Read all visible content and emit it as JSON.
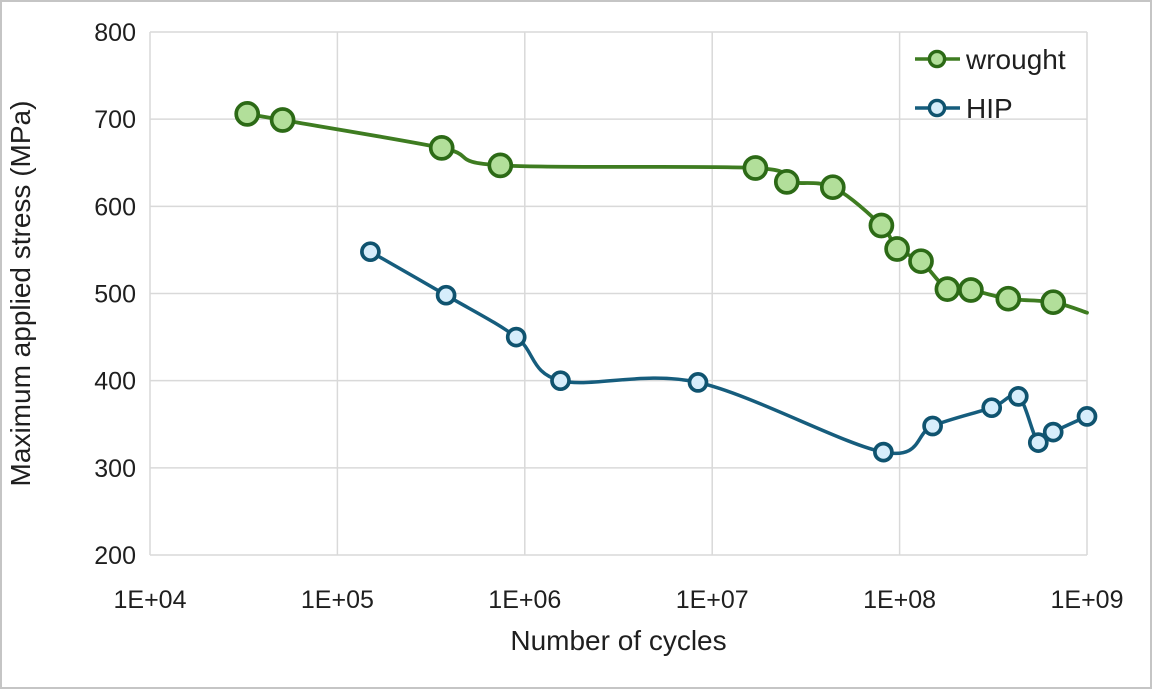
{
  "window": {
    "background": "#ffffff",
    "border_color": "#c5c5c5"
  },
  "chart_data": {
    "type": "line",
    "title": "",
    "xlabel": "Number of cycles",
    "ylabel": "Maximum applied stress (MPa)",
    "x_axis": {
      "scale": "log10",
      "min": 10000,
      "max": 1000000000,
      "ticks": [
        10000,
        100000,
        1000000,
        10000000,
        100000000,
        1000000000
      ],
      "tick_labels": [
        "1E+04",
        "1E+05",
        "1E+06",
        "1E+07",
        "1E+08",
        "1E+09"
      ]
    },
    "y_axis": {
      "min": 200,
      "max": 800,
      "ticks": [
        200,
        300,
        400,
        500,
        600,
        700,
        800
      ],
      "tick_labels": [
        "200",
        "300",
        "400",
        "500",
        "600",
        "700",
        "800"
      ]
    },
    "grid": true,
    "gridline_color": "#d9d9d9",
    "axis_text_color": "#1f1f1f",
    "legend": {
      "position": "top-right-inside",
      "entries": [
        "wrought",
        "HIP"
      ]
    },
    "series": [
      {
        "name": "wrought",
        "line_color": "#3e7c21",
        "marker_fill": "#b2df9a",
        "marker_stroke": "#2c6a16",
        "marker_radius": 11,
        "line_width": 3.8,
        "points": [
          [
            33000,
            706
          ],
          [
            51000,
            699
          ],
          [
            360000,
            667
          ],
          [
            740000,
            647
          ],
          [
            17000000,
            644
          ],
          [
            25000000,
            628
          ],
          [
            44000000,
            622
          ],
          [
            80000000,
            578
          ],
          [
            97000000,
            551
          ],
          [
            130000000,
            537
          ],
          [
            180000000,
            505
          ],
          [
            240000000,
            504
          ],
          [
            380000000,
            494
          ],
          [
            660000000,
            490
          ]
        ],
        "line_end_point": [
          1000000000,
          478
        ]
      },
      {
        "name": "HIP",
        "line_color": "#165d7d",
        "marker_fill": "#d6edfb",
        "marker_stroke": "#0f536f",
        "marker_radius": 8.5,
        "line_width": 3.5,
        "points": [
          [
            150000,
            548
          ],
          [
            380000,
            498
          ],
          [
            900000,
            450
          ],
          [
            1550000,
            400
          ],
          [
            8400000,
            398
          ],
          [
            82000000,
            318
          ],
          [
            150000000,
            348
          ],
          [
            310000000,
            369
          ],
          [
            430000000,
            382
          ],
          [
            550000000,
            329
          ],
          [
            660000000,
            341
          ],
          [
            1000000000,
            359
          ]
        ]
      }
    ]
  }
}
